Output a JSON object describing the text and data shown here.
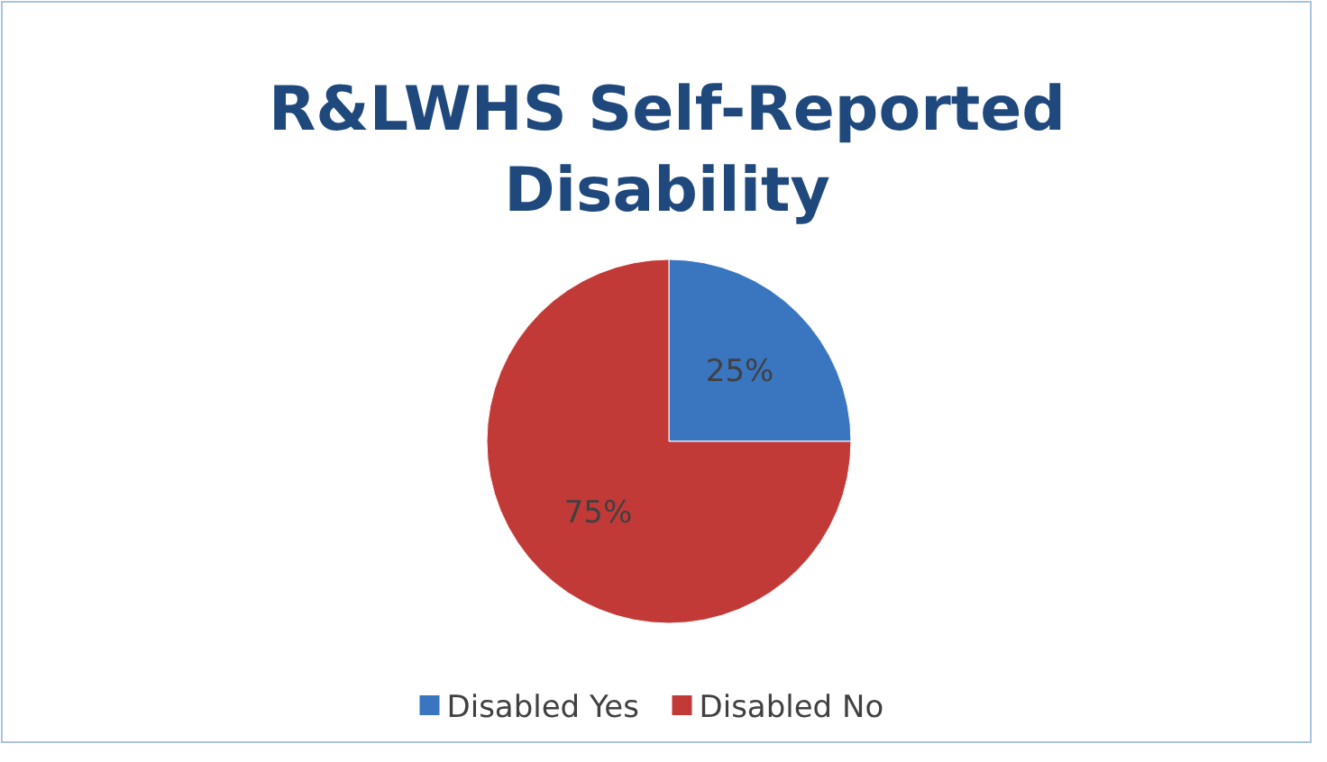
{
  "chart_data": {
    "type": "pie",
    "title": "R&LWHS Self-Reported Disability",
    "categories": [
      "Disabled Yes",
      "Disabled No"
    ],
    "values": [
      25,
      75
    ],
    "colors": [
      "#3a76c0",
      "#c23a38"
    ],
    "value_labels": [
      "25%",
      "75%"
    ],
    "legend": "bottom"
  }
}
